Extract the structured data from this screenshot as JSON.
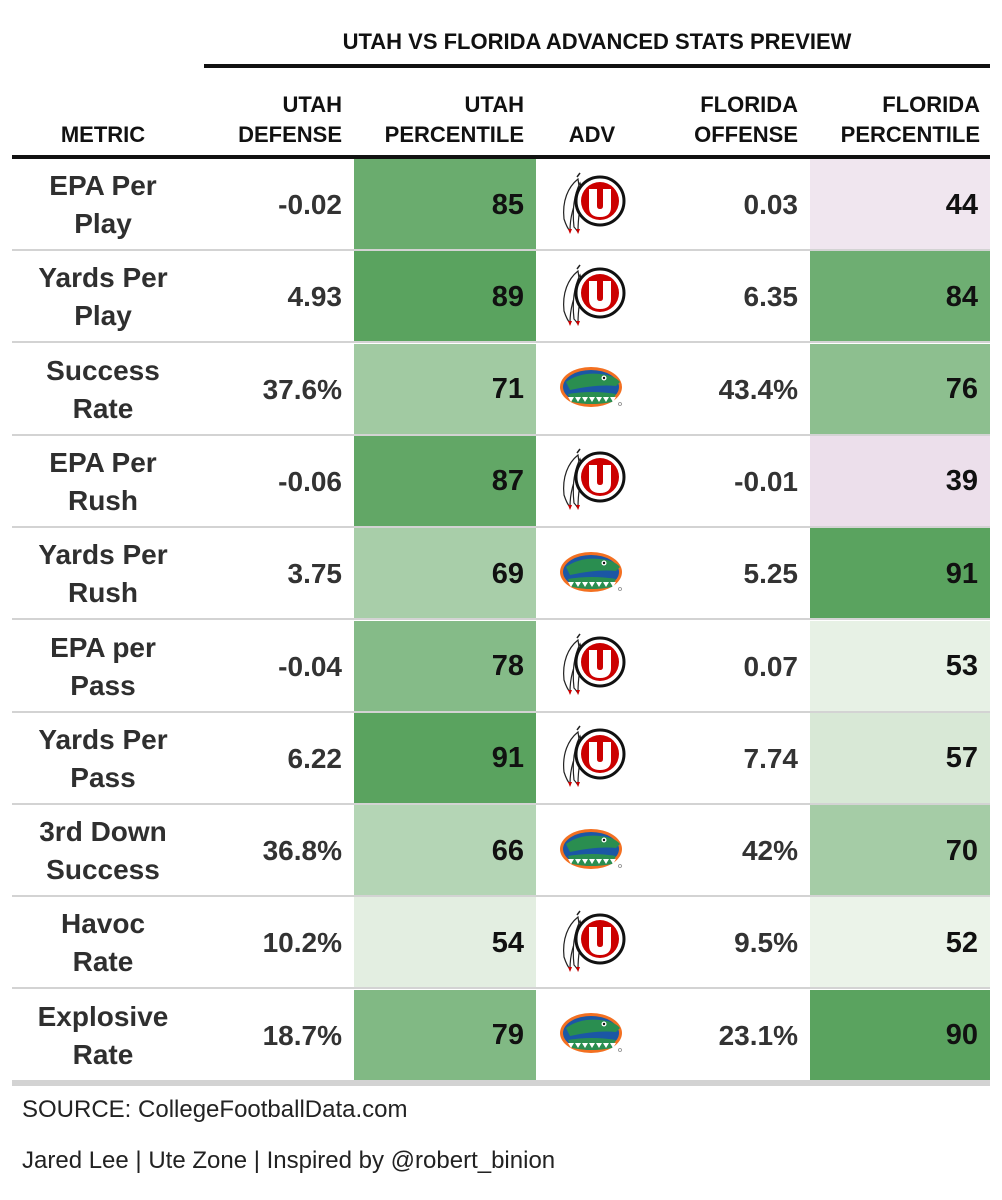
{
  "title": "UTAH VS FLORIDA ADVANCED STATS PREVIEW",
  "columns": {
    "metric": "METRIC",
    "utah_defense": [
      "UTAH",
      "DEFENSE"
    ],
    "utah_percentile": [
      "UTAH",
      "PERCENTILE"
    ],
    "adv": "ADV",
    "florida_offense": [
      "FLORIDA",
      "OFFENSE"
    ],
    "florida_percentile": [
      "FLORIDA",
      "PERCENTILE"
    ]
  },
  "colors": {
    "green_low": "#f3f7f0",
    "green_high": "#5aa35f",
    "purple_low": "#f5eef4",
    "purple_high": "#ecdfeb",
    "utah_red": "#cc0000",
    "gator_blue": "#1b57a5",
    "gator_orange": "#f37021",
    "gator_green": "#2a8e50"
  },
  "chart_data": {
    "type": "table",
    "rows": [
      {
        "metric": [
          "EPA Per",
          "Play"
        ],
        "utah_defense": "-0.02",
        "utah_percentile": 85,
        "adv": "utah",
        "florida_offense": "0.03",
        "florida_percentile": 44
      },
      {
        "metric": [
          "Yards Per",
          "Play"
        ],
        "utah_defense": "4.93",
        "utah_percentile": 89,
        "adv": "utah",
        "florida_offense": "6.35",
        "florida_percentile": 84
      },
      {
        "metric": [
          "Success",
          "Rate"
        ],
        "utah_defense": "37.6%",
        "utah_percentile": 71,
        "adv": "florida",
        "florida_offense": "43.4%",
        "florida_percentile": 76
      },
      {
        "metric": [
          "EPA Per",
          "Rush"
        ],
        "utah_defense": "-0.06",
        "utah_percentile": 87,
        "adv": "utah",
        "florida_offense": "-0.01",
        "florida_percentile": 39
      },
      {
        "metric": [
          "Yards Per",
          "Rush"
        ],
        "utah_defense": "3.75",
        "utah_percentile": 69,
        "adv": "florida",
        "florida_offense": "5.25",
        "florida_percentile": 91
      },
      {
        "metric": [
          "EPA per",
          "Pass"
        ],
        "utah_defense": "-0.04",
        "utah_percentile": 78,
        "adv": "utah",
        "florida_offense": "0.07",
        "florida_percentile": 53
      },
      {
        "metric": [
          "Yards Per",
          "Pass"
        ],
        "utah_defense": "6.22",
        "utah_percentile": 91,
        "adv": "utah",
        "florida_offense": "7.74",
        "florida_percentile": 57
      },
      {
        "metric": [
          "3rd Down",
          "Success"
        ],
        "utah_defense": "36.8%",
        "utah_percentile": 66,
        "adv": "florida",
        "florida_offense": "42%",
        "florida_percentile": 70
      },
      {
        "metric": [
          "Havoc",
          "Rate"
        ],
        "utah_defense": "10.2%",
        "utah_percentile": 54,
        "adv": "utah",
        "florida_offense": "9.5%",
        "florida_percentile": 52
      },
      {
        "metric": [
          "Explosive",
          "Rate"
        ],
        "utah_defense": "18.7%",
        "utah_percentile": 79,
        "adv": "florida",
        "florida_offense": "23.1%",
        "florida_percentile": 90
      }
    ]
  },
  "footer": {
    "source": "SOURCE: CollegeFootballData.com",
    "credit": "Jared Lee | Ute Zone | Inspired by @robert_binion"
  }
}
